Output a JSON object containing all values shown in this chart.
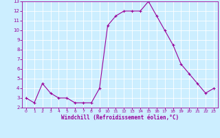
{
  "x": [
    0,
    1,
    2,
    3,
    4,
    5,
    6,
    7,
    8,
    9,
    10,
    11,
    12,
    13,
    14,
    15,
    16,
    17,
    18,
    19,
    20,
    21,
    22,
    23
  ],
  "y": [
    3.0,
    2.5,
    4.5,
    3.5,
    3.0,
    3.0,
    2.5,
    2.5,
    2.5,
    4.0,
    10.5,
    11.5,
    12.0,
    12.0,
    12.0,
    13.0,
    11.5,
    10.0,
    8.5,
    6.5,
    5.5,
    4.5,
    3.5,
    4.0
  ],
  "line_color": "#990099",
  "marker": "+",
  "bg_color": "#cceeff",
  "grid_color": "#ffffff",
  "xlabel": "Windchill (Refroidissement éolien,°C)",
  "xlabel_color": "#990099",
  "tick_color": "#990099",
  "ylim": [
    2,
    13
  ],
  "yticks": [
    2,
    3,
    4,
    5,
    6,
    7,
    8,
    9,
    10,
    11,
    12,
    13
  ],
  "xticks": [
    0,
    1,
    2,
    3,
    4,
    5,
    6,
    7,
    8,
    9,
    10,
    11,
    12,
    13,
    14,
    15,
    16,
    17,
    18,
    19,
    20,
    21,
    22,
    23
  ],
  "figsize": [
    3.2,
    2.0
  ],
  "dpi": 100
}
